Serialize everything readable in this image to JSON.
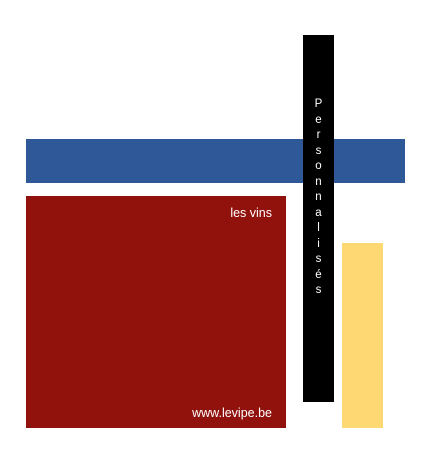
{
  "tagline": "les vins",
  "website": "www.levipe.be",
  "vertical_word": "Personnalisés",
  "colors": {
    "background": "#ffffff",
    "blue": "#2f5899",
    "red": "#91110d",
    "yellow": "#fdd873",
    "black": "#000000",
    "text_on_dark": "#ffffff"
  }
}
